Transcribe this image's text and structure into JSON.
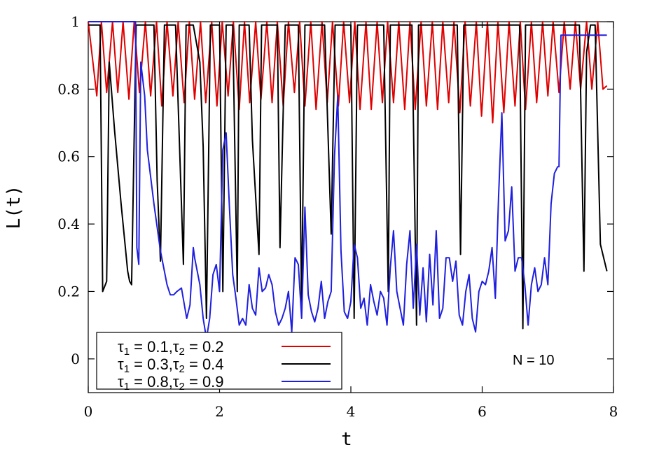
{
  "chart_data": {
    "type": "line",
    "xlabel": "t",
    "ylabel": "L(t)",
    "xlim": [
      0,
      8
    ],
    "ylim": [
      -0.1,
      1.0
    ],
    "x_ticks": [
      "0",
      "2",
      "4",
      "6",
      "8"
    ],
    "y_ticks": [
      "0",
      "0.2",
      "0.4",
      "0.6",
      "0.8",
      "1"
    ],
    "x_tick_values": [
      0,
      2,
      4,
      6,
      8
    ],
    "y_tick_values": [
      0,
      0.2,
      0.4,
      0.6,
      0.8,
      1.0
    ],
    "grid": false,
    "legend_position": "bottom-left",
    "annotation": "N = 10",
    "series": [
      {
        "name": "τ1 = 0.1,τ2 = 0.2",
        "label_parts": {
          "sym": "τ",
          "sub1": "1",
          "mid1": " = 0.1,",
          "sub2": "2",
          "tail": " = 0.2"
        },
        "color": "#e00000",
        "x": [
          0.0,
          0.13,
          0.2,
          0.28,
          0.37,
          0.45,
          0.53,
          0.62,
          0.7,
          0.78,
          0.87,
          0.95,
          1.04,
          1.12,
          1.2,
          1.29,
          1.37,
          1.46,
          1.54,
          1.62,
          1.71,
          1.79,
          1.88,
          1.96,
          2.04,
          2.13,
          2.21,
          2.3,
          2.38,
          2.46,
          2.55,
          2.63,
          2.72,
          2.8,
          2.88,
          2.97,
          3.05,
          3.14,
          3.22,
          3.3,
          3.39,
          3.47,
          3.56,
          3.64,
          3.72,
          3.81,
          3.89,
          3.98,
          4.06,
          4.14,
          4.23,
          4.31,
          4.4,
          4.48,
          4.56,
          4.65,
          4.73,
          4.82,
          4.9,
          4.98,
          5.07,
          5.15,
          5.24,
          5.32,
          5.4,
          5.49,
          5.57,
          5.66,
          5.74,
          5.82,
          5.91,
          5.99,
          6.08,
          6.16,
          6.24,
          6.33,
          6.41,
          6.5,
          6.58,
          6.66,
          6.75,
          6.83,
          6.92,
          7.0,
          7.08,
          7.17,
          7.25,
          7.34,
          7.42,
          7.5,
          7.59,
          7.67,
          7.76,
          7.84,
          7.9
        ],
        "y": [
          1.0,
          0.78,
          1.0,
          0.79,
          1.0,
          0.79,
          1.0,
          0.77,
          1.0,
          0.79,
          1.0,
          0.78,
          1.0,
          0.75,
          1.0,
          0.78,
          1.0,
          0.76,
          1.0,
          0.77,
          1.0,
          0.76,
          1.0,
          0.75,
          1.0,
          0.78,
          1.0,
          0.74,
          1.0,
          0.76,
          1.0,
          0.77,
          1.0,
          0.76,
          1.0,
          0.75,
          1.0,
          0.79,
          1.0,
          0.75,
          1.0,
          0.74,
          1.0,
          0.76,
          1.0,
          0.75,
          1.0,
          0.76,
          1.0,
          0.74,
          1.0,
          0.74,
          1.0,
          0.76,
          1.0,
          0.76,
          1.0,
          0.74,
          1.0,
          0.74,
          1.0,
          0.75,
          1.0,
          0.74,
          1.0,
          0.76,
          1.0,
          0.73,
          1.0,
          0.75,
          1.0,
          0.72,
          1.0,
          0.7,
          1.0,
          0.73,
          1.0,
          0.75,
          1.0,
          0.74,
          1.0,
          0.76,
          1.0,
          0.78,
          1.0,
          0.79,
          1.0,
          0.8,
          1.0,
          0.8,
          1.0,
          0.8,
          1.0,
          0.8,
          0.81
        ]
      },
      {
        "name": "τ1 = 0.3,τ2 = 0.4",
        "label_parts": {
          "sym": "τ",
          "sub1": "1",
          "mid1": " = 0.3,",
          "sub2": "2",
          "tail": " = 0.4"
        },
        "color": "#000000",
        "x": [
          0.0,
          0.14,
          0.18,
          0.22,
          0.28,
          0.32,
          0.4,
          0.5,
          0.6,
          0.63,
          0.66,
          0.73,
          0.8,
          0.87,
          0.92,
          1.0,
          1.05,
          1.1,
          1.16,
          1.2,
          1.25,
          1.33,
          1.45,
          1.49,
          1.52,
          1.6,
          1.7,
          1.75,
          1.8,
          1.86,
          1.92,
          2.0,
          2.05,
          2.1,
          2.16,
          2.2,
          2.27,
          2.3,
          2.35,
          2.45,
          2.5,
          2.6,
          2.64,
          2.7,
          2.75,
          2.8,
          2.88,
          2.92,
          3.0,
          3.05,
          3.1,
          3.15,
          3.2,
          3.25,
          3.3,
          3.38,
          3.43,
          3.5,
          3.55,
          3.6,
          3.7,
          3.76,
          3.82,
          3.87,
          3.93,
          4.0,
          4.05,
          4.1,
          4.15,
          4.2,
          4.25,
          4.3,
          4.37,
          4.45,
          4.5,
          4.57,
          4.6,
          4.68,
          4.73,
          4.8,
          4.86,
          4.93,
          5.0,
          5.03,
          5.1,
          5.15,
          5.2,
          5.24,
          5.29,
          5.35,
          5.42,
          5.5,
          5.56,
          5.62,
          5.67,
          5.72,
          5.76,
          5.84,
          5.9,
          5.96,
          6.0,
          6.05,
          6.1,
          6.14,
          6.17,
          6.2,
          6.25,
          6.32,
          6.4,
          6.48,
          6.57,
          6.62,
          6.66,
          6.7,
          6.77,
          6.83,
          6.9,
          6.97,
          7.03,
          7.1,
          7.15,
          7.2,
          7.25,
          7.32,
          7.4,
          7.48,
          7.55,
          7.59,
          7.65,
          7.72,
          7.8,
          7.9
        ],
        "y": [
          0.99,
          0.99,
          0.99,
          0.2,
          0.23,
          0.88,
          0.68,
          0.46,
          0.26,
          0.23,
          0.22,
          0.99,
          0.99,
          0.99,
          0.99,
          0.99,
          0.53,
          0.29,
          0.99,
          0.99,
          0.99,
          0.99,
          0.28,
          0.99,
          0.99,
          0.99,
          0.88,
          0.63,
          0.12,
          0.99,
          0.99,
          0.99,
          0.2,
          0.99,
          0.99,
          0.99,
          0.2,
          0.99,
          0.99,
          0.99,
          0.65,
          0.31,
          0.99,
          0.99,
          0.99,
          0.99,
          0.99,
          0.33,
          0.99,
          0.99,
          0.99,
          0.99,
          0.99,
          0.15,
          0.99,
          0.99,
          0.99,
          0.99,
          0.99,
          0.99,
          0.37,
          0.99,
          0.99,
          0.99,
          0.99,
          0.99,
          0.12,
          0.99,
          0.99,
          0.99,
          0.99,
          0.99,
          0.99,
          0.99,
          0.99,
          0.2,
          0.99,
          0.99,
          0.99,
          0.99,
          0.99,
          0.99,
          0.1,
          0.99,
          0.99,
          0.99,
          0.99,
          0.99,
          0.99,
          0.99,
          0.99,
          0.99,
          0.99,
          0.99,
          0.31,
          0.99,
          0.99,
          0.99,
          0.99,
          0.99,
          0.99,
          0.99,
          0.99,
          0.99,
          0.99,
          0.99,
          0.99,
          0.99,
          0.99,
          0.99,
          0.99,
          0.09,
          0.99,
          0.99,
          0.99,
          0.99,
          0.99,
          0.99,
          0.99,
          0.99,
          0.99,
          0.99,
          0.99,
          0.99,
          0.99,
          0.99,
          0.26,
          0.91,
          0.99,
          0.99,
          0.34,
          0.26
        ],
        "notes_omit": true
      },
      {
        "name": "τ1 = 0.8,τ2 = 0.9",
        "label_parts": {
          "sym": "τ",
          "sub1": "1",
          "mid1": " = 0.8,",
          "sub2": "2",
          "tail": " = 0.9"
        },
        "color": "#1f1fdf",
        "x": [
          0.0,
          0.72,
          0.74,
          0.77,
          0.8,
          0.86,
          0.9,
          1.0,
          1.1,
          1.2,
          1.25,
          1.3,
          1.35,
          1.42,
          1.5,
          1.55,
          1.6,
          1.62,
          1.7,
          1.75,
          1.8,
          1.85,
          1.9,
          1.95,
          2.0,
          2.05,
          2.1,
          2.15,
          2.2,
          2.25,
          2.3,
          2.35,
          2.4,
          2.45,
          2.5,
          2.55,
          2.6,
          2.65,
          2.7,
          2.75,
          2.8,
          2.85,
          2.9,
          2.95,
          3.0,
          3.05,
          3.1,
          3.15,
          3.2,
          3.25,
          3.3,
          3.35,
          3.4,
          3.45,
          3.5,
          3.55,
          3.6,
          3.65,
          3.7,
          3.75,
          3.8,
          3.85,
          3.9,
          3.95,
          4.0,
          4.05,
          4.1,
          4.15,
          4.2,
          4.25,
          4.3,
          4.35,
          4.4,
          4.45,
          4.5,
          4.55,
          4.6,
          4.65,
          4.7,
          4.75,
          4.8,
          4.85,
          4.9,
          4.95,
          5.0,
          5.05,
          5.1,
          5.15,
          5.2,
          5.25,
          5.3,
          5.35,
          5.4,
          5.45,
          5.5,
          5.55,
          5.6,
          5.65,
          5.7,
          5.75,
          5.8,
          5.85,
          5.9,
          5.95,
          6.0,
          6.05,
          6.1,
          6.15,
          6.2,
          6.25,
          6.3,
          6.35,
          6.4,
          6.45,
          6.5,
          6.55,
          6.6,
          6.65,
          6.7,
          6.75,
          6.8,
          6.85,
          6.9,
          6.95,
          7.0,
          7.05,
          7.1,
          7.15,
          7.17,
          7.2,
          7.9
        ],
        "y": [
          1.0,
          1.0,
          0.33,
          0.28,
          0.88,
          0.78,
          0.62,
          0.46,
          0.32,
          0.22,
          0.19,
          0.19,
          0.2,
          0.21,
          0.12,
          0.16,
          0.33,
          0.3,
          0.22,
          0.12,
          0.06,
          0.12,
          0.25,
          0.28,
          0.2,
          0.62,
          0.67,
          0.45,
          0.25,
          0.18,
          0.1,
          0.12,
          0.1,
          0.22,
          0.15,
          0.13,
          0.27,
          0.2,
          0.21,
          0.25,
          0.22,
          0.14,
          0.1,
          0.12,
          0.15,
          0.2,
          0.08,
          0.3,
          0.28,
          0.12,
          0.45,
          0.19,
          0.14,
          0.11,
          0.15,
          0.23,
          0.12,
          0.17,
          0.2,
          0.6,
          0.78,
          0.32,
          0.14,
          0.12,
          0.17,
          0.34,
          0.3,
          0.15,
          0.18,
          0.1,
          0.22,
          0.17,
          0.13,
          0.2,
          0.18,
          0.1,
          0.27,
          0.38,
          0.2,
          0.15,
          0.1,
          0.28,
          0.38,
          0.15,
          0.34,
          0.13,
          0.27,
          0.11,
          0.31,
          0.16,
          0.38,
          0.12,
          0.15,
          0.3,
          0.3,
          0.23,
          0.29,
          0.13,
          0.1,
          0.2,
          0.25,
          0.12,
          0.08,
          0.2,
          0.23,
          0.22,
          0.26,
          0.33,
          0.18,
          0.48,
          0.73,
          0.35,
          0.38,
          0.51,
          0.26,
          0.3,
          0.3,
          0.22,
          0.1,
          0.22,
          0.27,
          0.2,
          0.22,
          0.3,
          0.22,
          0.46,
          0.55,
          0.57,
          0.57,
          0.96,
          0.96
        ]
      }
    ]
  }
}
